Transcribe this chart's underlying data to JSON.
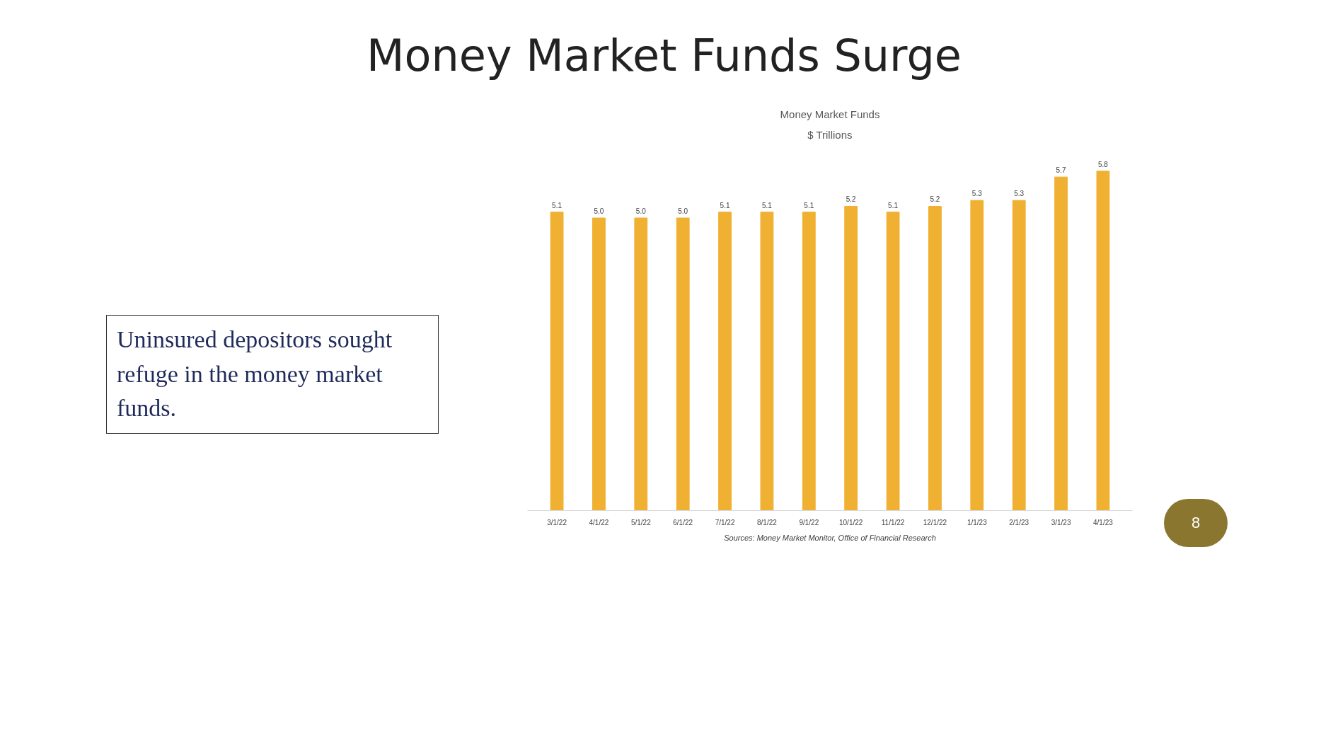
{
  "chart_data": {
    "type": "bar",
    "title": "Money Market Funds",
    "subtitle": "$ Trillions",
    "categories": [
      "3/1/22",
      "4/1/22",
      "5/1/22",
      "6/1/22",
      "7/1/22",
      "8/1/22",
      "9/1/22",
      "10/1/22",
      "11/1/22",
      "12/1/22",
      "1/1/23",
      "2/1/23",
      "3/1/23",
      "4/1/23"
    ],
    "values": [
      5.1,
      5.0,
      5.0,
      5.0,
      5.1,
      5.1,
      5.1,
      5.2,
      5.1,
      5.2,
      5.3,
      5.3,
      5.7,
      5.8
    ],
    "value_labels": [
      "5.1",
      "5.0",
      "5.0",
      "5.0",
      "5.1",
      "5.1",
      "5.1",
      "5.2",
      "5.1",
      "5.2",
      "5.3",
      "5.3",
      "5.7",
      "5.8"
    ],
    "color": "#f0b032",
    "grid": false,
    "tick_labels": "x",
    "annotations": [
      "Money Market Funds Surge",
      "Uninsured depositors sought refuge in the money market funds.",
      "Sources: Money Market Monitor, Office of Financial Research",
      "8"
    ]
  }
}
